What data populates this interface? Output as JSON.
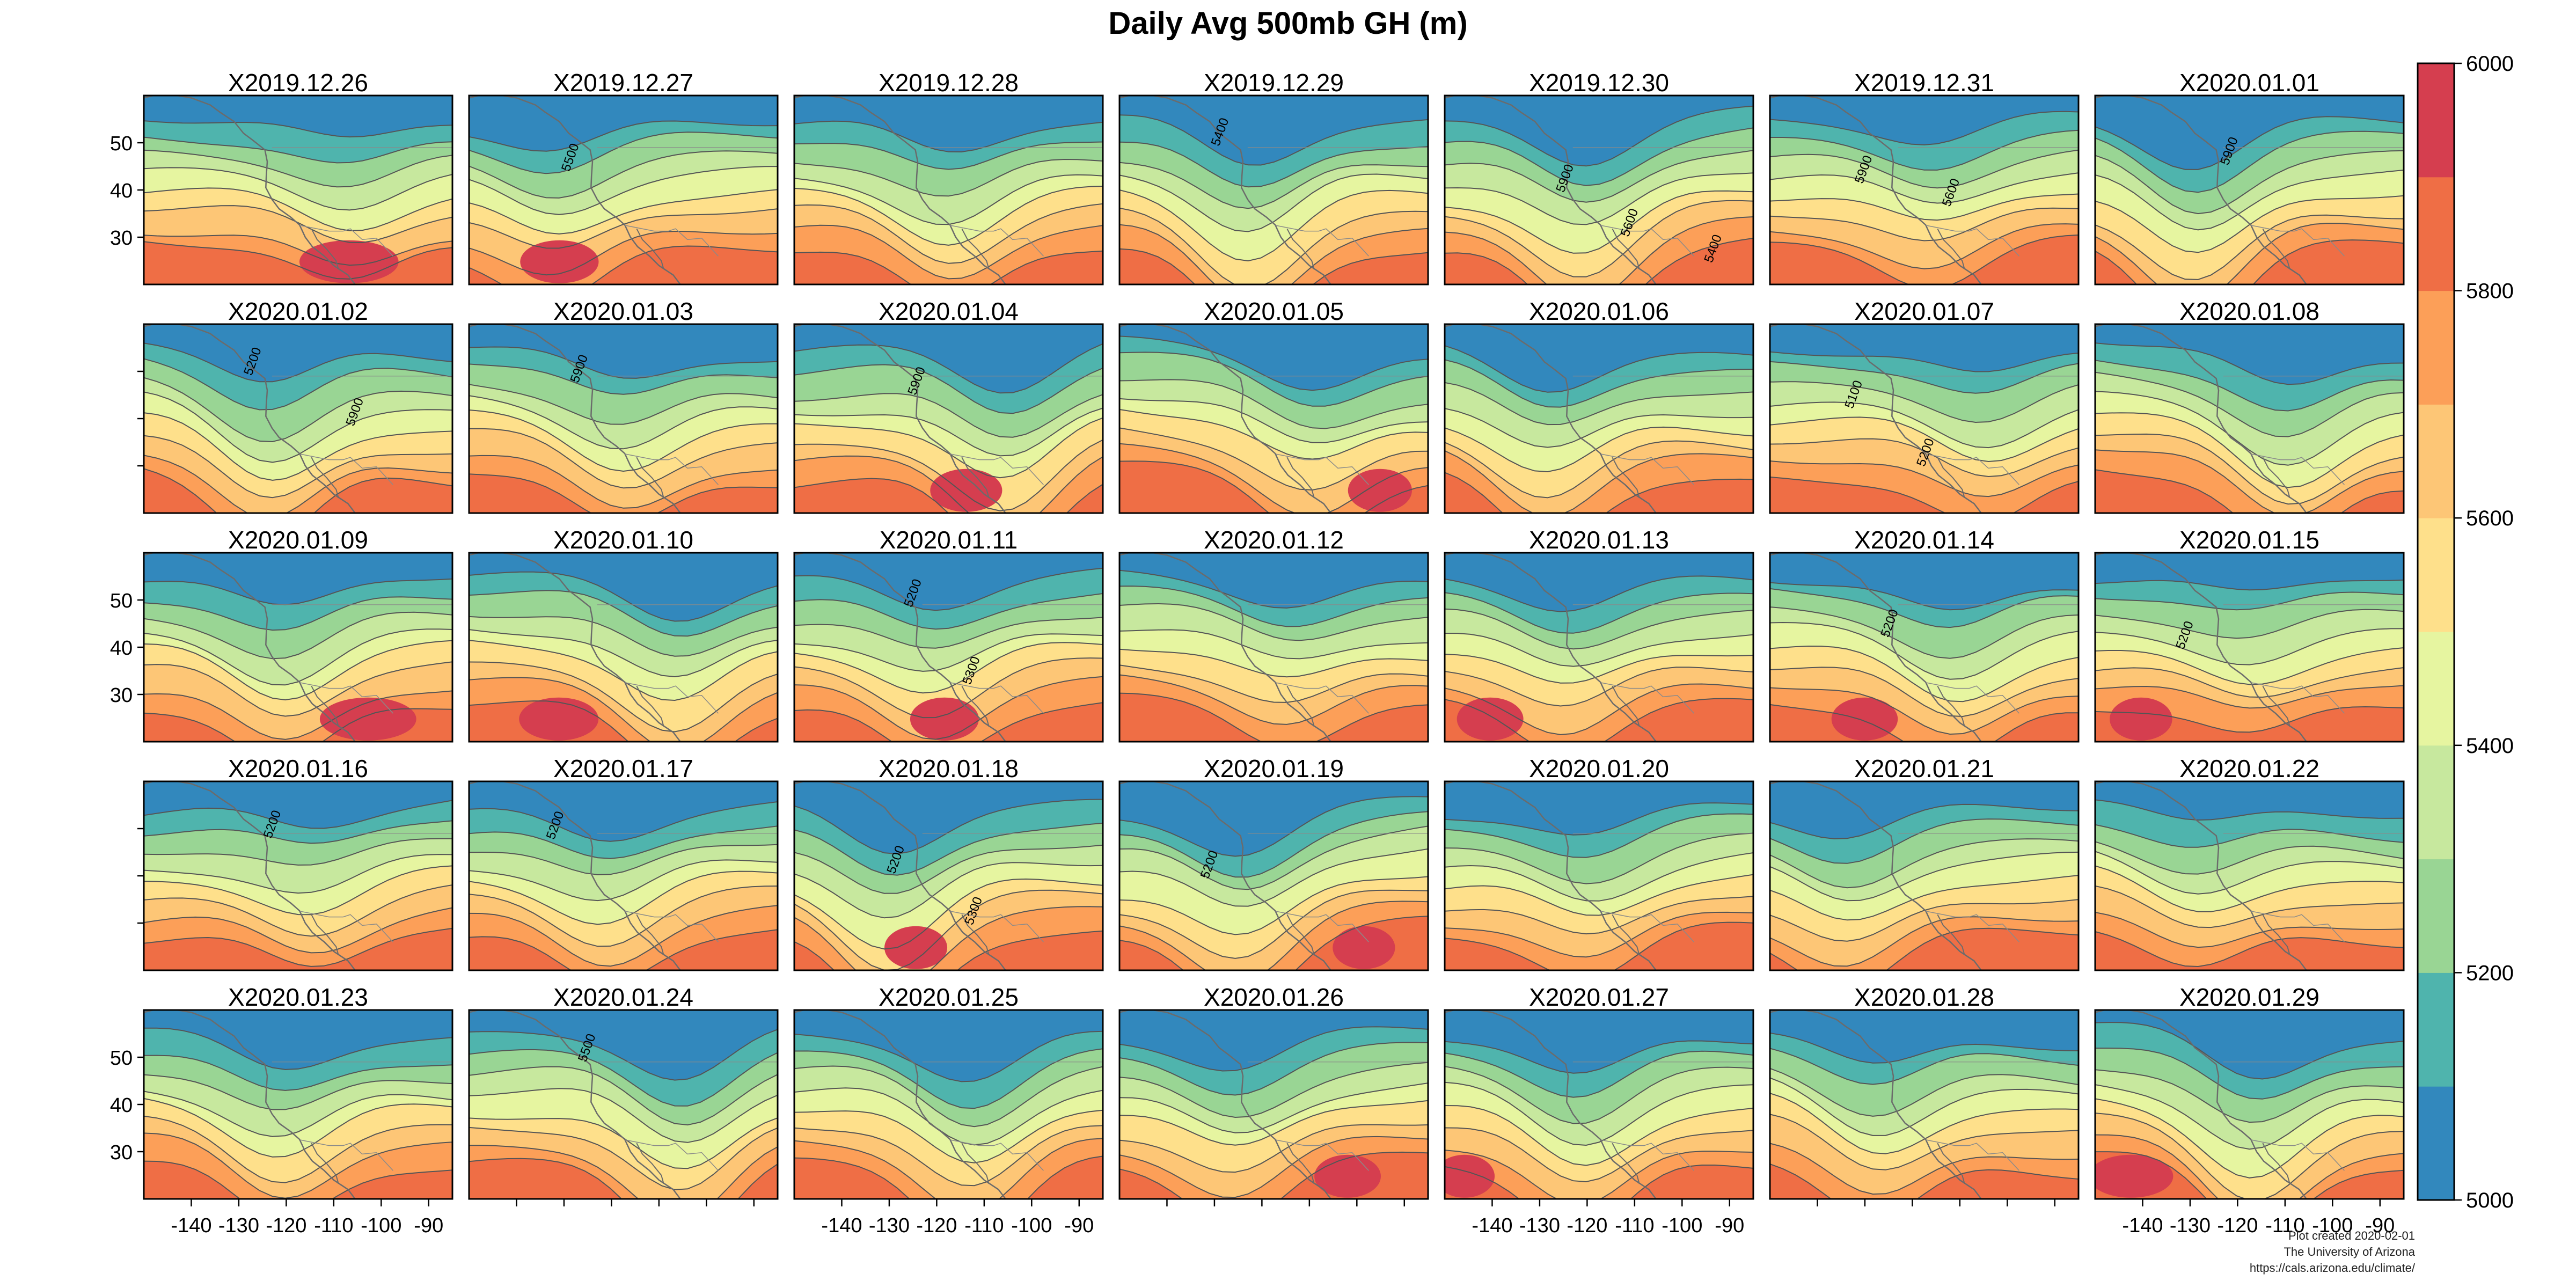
{
  "title": "Daily Avg 500mb GH (m)",
  "panels": [
    "X2019.12.26",
    "X2019.12.27",
    "X2019.12.28",
    "X2019.12.29",
    "X2019.12.30",
    "X2019.12.31",
    "X2020.01.01",
    "X2020.01.02",
    "X2020.01.03",
    "X2020.01.04",
    "X2020.01.05",
    "X2020.01.06",
    "X2020.01.07",
    "X2020.01.08",
    "X2020.01.09",
    "X2020.01.10",
    "X2020.01.11",
    "X2020.01.12",
    "X2020.01.13",
    "X2020.01.14",
    "X2020.01.15",
    "X2020.01.16",
    "X2020.01.17",
    "X2020.01.18",
    "X2020.01.19",
    "X2020.01.20",
    "X2020.01.21",
    "X2020.01.22",
    "X2020.01.23",
    "X2020.01.24",
    "X2020.01.25",
    "X2020.01.26",
    "X2020.01.27",
    "X2020.01.28",
    "X2020.01.29"
  ],
  "map_extent": {
    "lon": [
      -150,
      -85
    ],
    "lat": [
      20,
      60
    ]
  },
  "y_ticks": [
    "50",
    "40",
    "30"
  ],
  "x_ticks": [
    "-140",
    "-130",
    "-120",
    "-110",
    "-100",
    "-90"
  ],
  "colorbar": {
    "min": 5000,
    "max": 6000,
    "labels": [
      "6000",
      "5800",
      "5600",
      "5400",
      "5200",
      "5000"
    ],
    "colors": [
      "#3288bd",
      "#4fb4ad",
      "#99d594",
      "#c7e89e",
      "#e6f5a0",
      "#fee08b",
      "#fdc676",
      "#fc9f58",
      "#ef6e45",
      "#d53e4f"
    ]
  },
  "contour_labels": [
    {
      "panel": 1,
      "text": "5500"
    },
    {
      "panel": 3,
      "text": "5400"
    },
    {
      "panel": 4,
      "text": "5900"
    },
    {
      "panel": 4,
      "text": "5600"
    },
    {
      "panel": 4,
      "text": "5400"
    },
    {
      "panel": 5,
      "text": "5900"
    },
    {
      "panel": 5,
      "text": "5600"
    },
    {
      "panel": 6,
      "text": "5900"
    },
    {
      "panel": 7,
      "text": "5200"
    },
    {
      "panel": 7,
      "text": "5900"
    },
    {
      "panel": 8,
      "text": "5900"
    },
    {
      "panel": 9,
      "text": "5900"
    },
    {
      "panel": 12,
      "text": "5100"
    },
    {
      "panel": 12,
      "text": "5200"
    },
    {
      "panel": 16,
      "text": "5200"
    },
    {
      "panel": 16,
      "text": "5300"
    },
    {
      "panel": 19,
      "text": "5200"
    },
    {
      "panel": 20,
      "text": "5200"
    },
    {
      "panel": 21,
      "text": "5200"
    },
    {
      "panel": 22,
      "text": "5200"
    },
    {
      "panel": 23,
      "text": "5200"
    },
    {
      "panel": 23,
      "text": "5300"
    },
    {
      "panel": 24,
      "text": "5200"
    },
    {
      "panel": 29,
      "text": "5500"
    }
  ],
  "credits": [
    "Plot created 2020-02-01",
    "The University of Arizona",
    "https://cals.arizona.edu/climate/"
  ]
}
